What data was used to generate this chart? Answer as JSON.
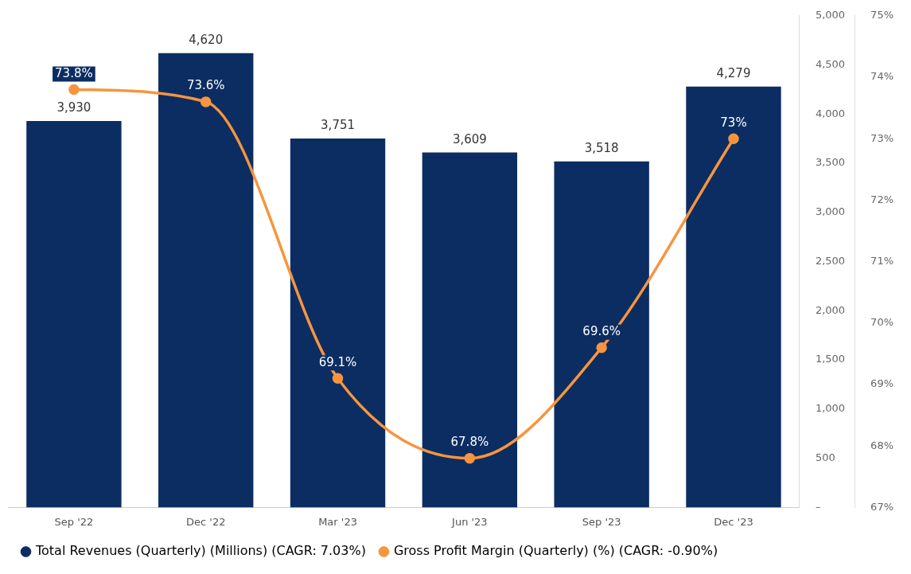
{
  "chart_data": {
    "type": "bar",
    "categories": [
      "Sep '22",
      "Dec '22",
      "Mar '23",
      "Jun '23",
      "Sep '23",
      "Dec '23"
    ],
    "series": [
      {
        "name": "Total Revenues (Quarterly) (Millions) (CAGR: 7.03%)",
        "color": "#0c2d62",
        "values": [
          3930,
          4620,
          3751,
          3609,
          3518,
          4279
        ],
        "value_labels": [
          "3,930",
          "4,620",
          "3,751",
          "3,609",
          "3,518",
          "4,279"
        ]
      },
      {
        "name": "Gross Profit Margin (Quarterly) (%) (CAGR: -0.90%)",
        "type": "line",
        "axis": "y2",
        "color": "#f7953e",
        "values": [
          73.8,
          73.6,
          69.1,
          67.8,
          69.6,
          73
        ],
        "value_labels": [
          "73.8%",
          "73.6%",
          "69.1%",
          "67.8%",
          "69.6%",
          "73%"
        ]
      }
    ],
    "ylim": [
      0,
      5000
    ],
    "yticks": [
      {
        "value": 0,
        "label": "–"
      },
      {
        "value": 500,
        "label": "500"
      },
      {
        "value": 1000,
        "label": "1,000"
      },
      {
        "value": 1500,
        "label": "1,500"
      },
      {
        "value": 2000,
        "label": "2,000"
      },
      {
        "value": 2500,
        "label": "2,500"
      },
      {
        "value": 3000,
        "label": "3,000"
      },
      {
        "value": 3500,
        "label": "3,500"
      },
      {
        "value": 4000,
        "label": "4,000"
      },
      {
        "value": 4500,
        "label": "4,500"
      },
      {
        "value": 5000,
        "label": "5,000"
      }
    ],
    "y2lim": [
      67,
      75
    ],
    "y2ticks": [
      {
        "value": 67,
        "label": "67%"
      },
      {
        "value": 68,
        "label": "68%"
      },
      {
        "value": 69,
        "label": "69%"
      },
      {
        "value": 70,
        "label": "70%"
      },
      {
        "value": 71,
        "label": "71%"
      },
      {
        "value": 72,
        "label": "72%"
      },
      {
        "value": 73,
        "label": "73%"
      },
      {
        "value": 74,
        "label": "74%"
      },
      {
        "value": 75,
        "label": "75%"
      }
    ],
    "grid": false,
    "legend": "bottom",
    "marker": "circle"
  }
}
